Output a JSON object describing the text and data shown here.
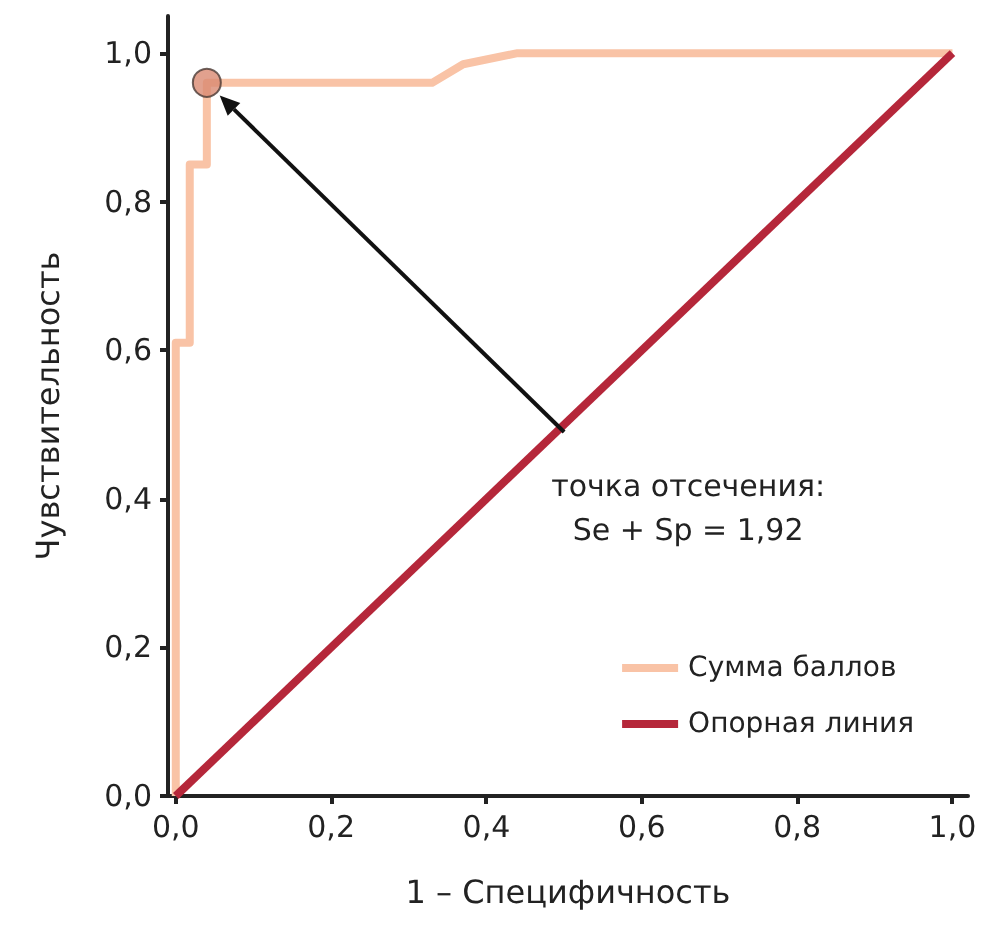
{
  "chart_data": {
    "type": "step",
    "xlabel": "1 – Специфичность",
    "ylabel": "Чувствительность",
    "series": [
      {
        "name": "Сумма баллов",
        "color": "#f9c3a6",
        "x": [
          0,
          0,
          0.018,
          0.018,
          0.04,
          0.04,
          0.33,
          0.37,
          0.44,
          1.0
        ],
        "values": [
          0,
          0.61,
          0.61,
          0.85,
          0.85,
          0.96,
          0.96,
          0.985,
          1.0,
          1.0
        ]
      },
      {
        "name": "Опорная линия",
        "color": "#b5273a",
        "type": "line",
        "x": [
          0,
          1
        ],
        "values": [
          0,
          1
        ]
      },
      {
        "color": "#d98a72",
        "type": "scatter",
        "x": [
          0.04
        ],
        "values": [
          0.96
        ]
      }
    ],
    "annotations": [
      "точка отсечения:\nSe + Sp = 1,92"
    ],
    "xlim": [
      -0.01,
      1.02
    ],
    "ylim": [
      0,
      1.05
    ],
    "xticks": [
      {
        "value": 0,
        "label": "0,0"
      },
      {
        "value": 0.2,
        "label": "0,2"
      },
      {
        "value": 0.4,
        "label": "0,4"
      },
      {
        "value": 0.6,
        "label": "0,6"
      },
      {
        "value": 0.8,
        "label": "0,8"
      },
      {
        "value": 1,
        "label": "1,0"
      }
    ],
    "yticks": [
      {
        "value": 0,
        "label": "0,0"
      },
      {
        "value": 0.2,
        "label": "0,2"
      },
      {
        "value": 0.4,
        "label": "0,4"
      },
      {
        "value": 0.6,
        "label": "0,6"
      },
      {
        "value": 0.8,
        "label": "0,8"
      },
      {
        "value": 1,
        "label": "1,0"
      }
    ],
    "grid": false,
    "legend": "bottom right"
  }
}
